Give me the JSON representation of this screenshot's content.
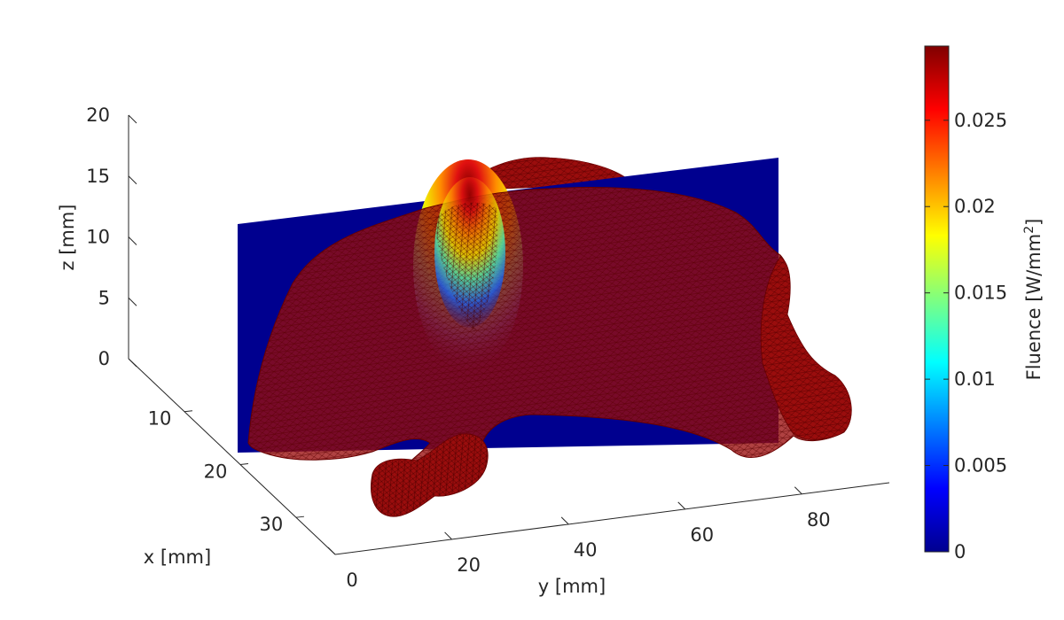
{
  "chart_data": {
    "type": "3d-surface-mesh",
    "title": "",
    "axes": {
      "x": {
        "label": "x [mm]",
        "ticks": [
          10,
          20,
          30
        ],
        "range": [
          0,
          37
        ]
      },
      "y": {
        "label": "y [mm]",
        "ticks": [
          0,
          20,
          40,
          60,
          80
        ],
        "range": [
          0,
          95
        ]
      },
      "z": {
        "label": "z [mm]",
        "ticks": [
          0,
          5,
          10,
          15,
          20
        ],
        "range": [
          0,
          20
        ]
      }
    },
    "grid": false,
    "colorbar": {
      "label_main": "Fluence [W/mm",
      "label_sup": "2",
      "label_end": "]",
      "ticks": [
        0,
        0.005,
        0.01,
        0.015,
        0.02,
        0.025
      ],
      "tick_labels": [
        "0",
        "0.005",
        "0.01",
        "0.015",
        "0.02",
        "0.025"
      ],
      "range": [
        0,
        0.0293
      ],
      "colormap": "jet",
      "placement": "right"
    },
    "slice": {
      "description": "fluence slice plane",
      "background_value": 0,
      "peak_value": 0.0293,
      "peak_location_y_mm": 22,
      "peak_location_z_mm": 13
    },
    "mesh": {
      "edge_color": "#8b0000",
      "face_color": "#9a0d0d"
    }
  }
}
